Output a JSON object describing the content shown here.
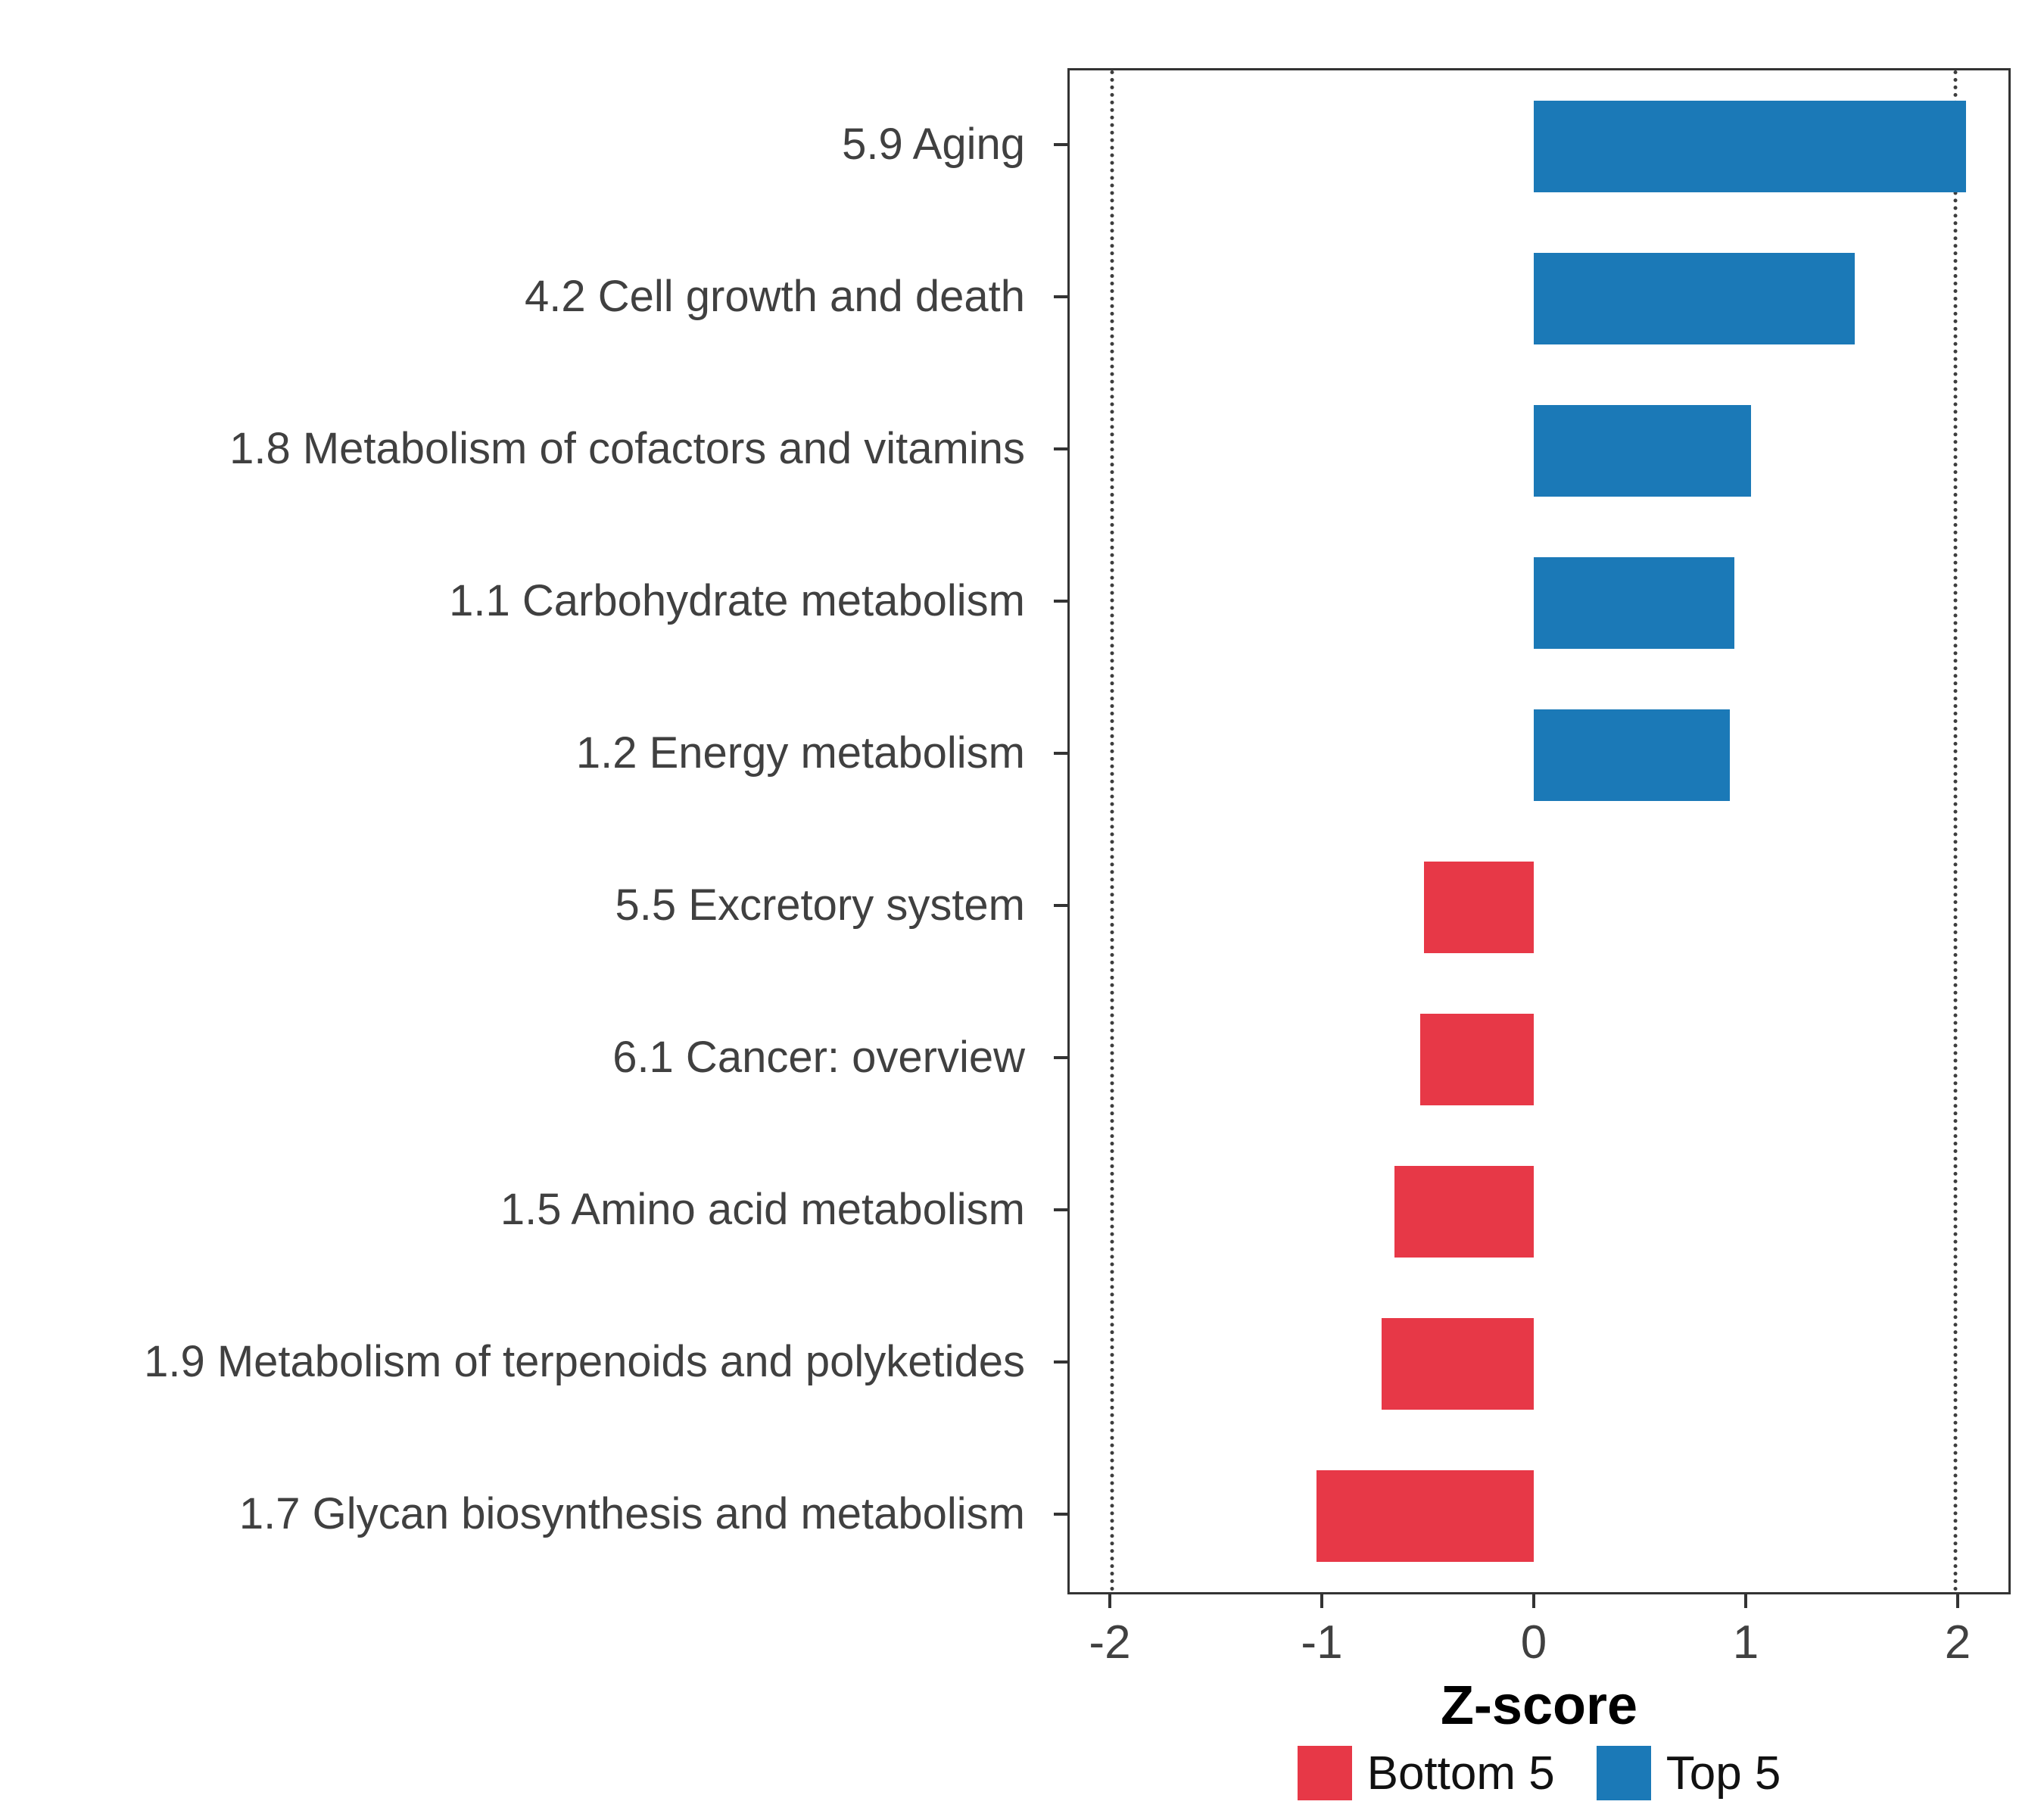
{
  "chart_data": {
    "type": "bar",
    "orientation": "horizontal",
    "title": "",
    "xlabel": "Z-score",
    "xlim": [
      -2.2,
      2.25
    ],
    "xticks": [
      -2,
      -1,
      0,
      1,
      2
    ],
    "vlines": [
      -2,
      2
    ],
    "grid": "off",
    "legend_position": "bottom",
    "categories": [
      "5.9 Aging",
      "4.2 Cell growth and death",
      "1.8 Metabolism of cofactors and vitamins",
      "1.1 Carbohydrate metabolism",
      "1.2 Energy metabolism",
      "5.5 Excretory system",
      "6.1 Cancer: overview",
      "1.5 Amino acid metabolism",
      "1.9 Metabolism of terpenoids and polyketides",
      "1.7 Glycan biosynthesis and metabolism"
    ],
    "values": [
      2.05,
      1.52,
      1.03,
      0.95,
      0.93,
      -0.52,
      -0.54,
      -0.66,
      -0.72,
      -1.03
    ],
    "colors": {
      "positive": "#1B79B7",
      "negative": "#E73847",
      "axis_text": "#404040",
      "axis_line": "#333333"
    },
    "legend": [
      {
        "label": "Bottom 5",
        "color": "#E73847"
      },
      {
        "label": "Top 5",
        "color": "#1B79B7"
      }
    ]
  }
}
